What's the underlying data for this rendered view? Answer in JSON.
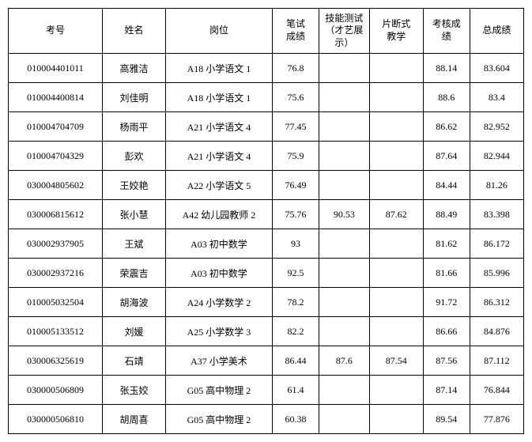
{
  "table": {
    "columns": [
      "考号",
      "姓名",
      "岗位",
      "笔试\n成绩",
      "技能测试\n（才艺展\n示）",
      "片断式\n教学",
      "考核成\n绩",
      "总成绩"
    ],
    "col_classes": [
      "col-id",
      "col-name",
      "col-pos",
      "col-s1",
      "col-s2",
      "col-s3",
      "col-s4",
      "col-total"
    ],
    "rows": [
      [
        "010004401011",
        "高雅洁",
        "A18 小学语文 1",
        "76.8",
        "",
        "",
        "88.14",
        "83.604"
      ],
      [
        "010004400814",
        "刘佳明",
        "A18 小学语文 1",
        "75.6",
        "",
        "",
        "88.6",
        "83.4"
      ],
      [
        "010004704709",
        "杨雨平",
        "A21 小学语文 4",
        "77.45",
        "",
        "",
        "86.62",
        "82.952"
      ],
      [
        "010004704329",
        "彭欢",
        "A21 小学语文 4",
        "75.9",
        "",
        "",
        "87.64",
        "82.944"
      ],
      [
        "030004805602",
        "王姣艳",
        "A22 小学语文 5",
        "76.49",
        "",
        "",
        "84.44",
        "81.26"
      ],
      [
        "030006815612",
        "张小慧",
        "A42 幼儿园教师 2",
        "75.76",
        "90.53",
        "87.62",
        "88.49",
        "83.398"
      ],
      [
        "030002937905",
        "王斌",
        "A03 初中数学",
        "93",
        "",
        "",
        "81.62",
        "86.172"
      ],
      [
        "030002937216",
        "荣震吉",
        "A03 初中数学",
        "92.5",
        "",
        "",
        "81.66",
        "85.996"
      ],
      [
        "010005032504",
        "胡海波",
        "A24 小学数学 2",
        "78.2",
        "",
        "",
        "91.72",
        "86.312"
      ],
      [
        "010005133512",
        "刘媛",
        "A25 小学数学 3",
        "82.2",
        "",
        "",
        "86.66",
        "84.876"
      ],
      [
        "030006325619",
        "石靖",
        "A37 小学美术",
        "86.44",
        "87.6",
        "87.54",
        "87.56",
        "87.112"
      ],
      [
        "030000506809",
        "张玉姣",
        "G05 高中物理 2",
        "61.4",
        "",
        "",
        "87.14",
        "76.844"
      ],
      [
        "030000506810",
        "胡周喜",
        "G05 高中物理 2",
        "60.38",
        "",
        "",
        "89.54",
        "77.876"
      ]
    ]
  }
}
